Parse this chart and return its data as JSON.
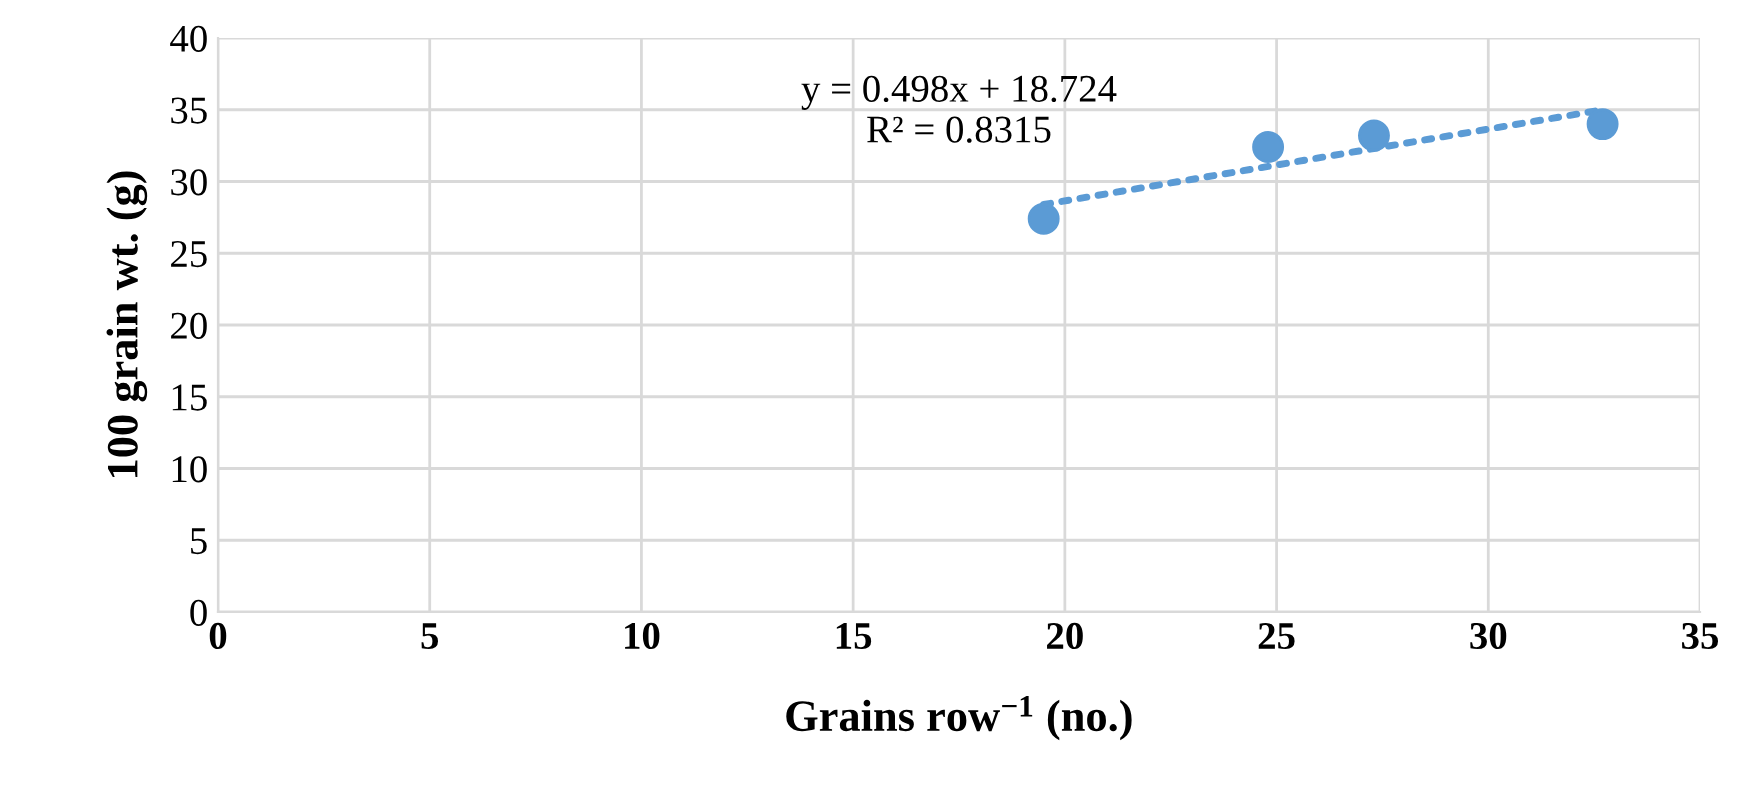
{
  "chart_data": {
    "type": "scatter",
    "xlabel": "Grains row$^{−1}$ (no.)",
    "ylabel": "100 grain wt. (g)",
    "xlim": [
      0,
      35
    ],
    "xticks": [
      0,
      5,
      10,
      15,
      20,
      25,
      30,
      35
    ],
    "ylim": [
      0,
      40
    ],
    "yticks": [
      0,
      5,
      10,
      15,
      20,
      25,
      30,
      35,
      40
    ],
    "grid": true,
    "series": [
      {
        "color": "#5b9bd5",
        "marker": "circle",
        "x": [
          19.5,
          24.8,
          27.3,
          32.7
        ],
        "values": [
          27.4,
          32.4,
          33.2,
          34.0
        ]
      },
      {
        "type": "line",
        "line_style": "dotted",
        "marker": "none",
        "color": "#5b9bd5",
        "x": [
          19.5,
          32.7
        ],
        "values": [
          28.4,
          35.0
        ]
      }
    ],
    "annotations": [
      "y = 0.498x + 18.724\nR² = 0.8315"
    ]
  }
}
